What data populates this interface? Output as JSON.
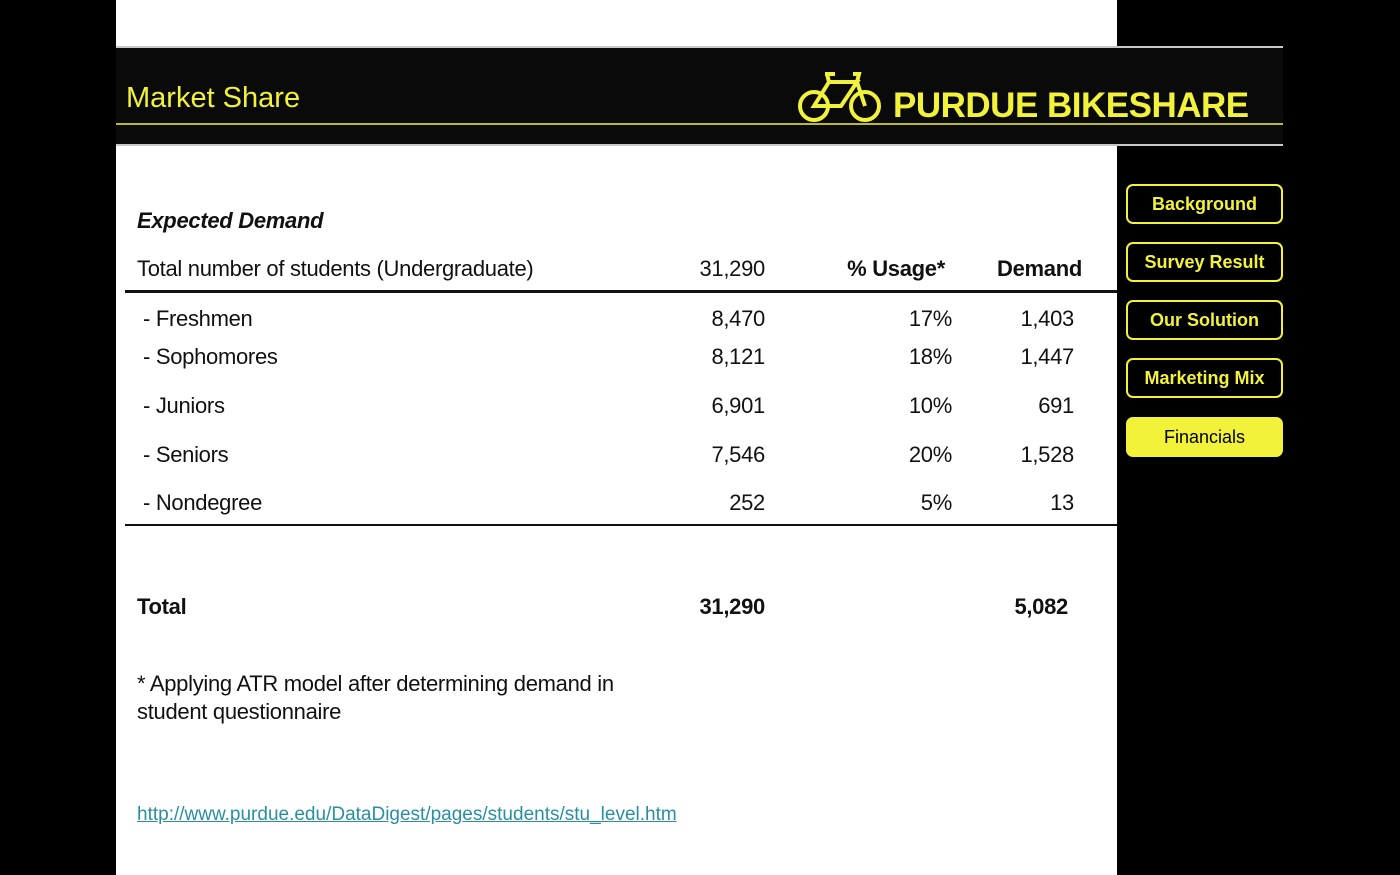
{
  "header": {
    "title": "Market Share",
    "logo": "PURDUE BIKESHARE"
  },
  "nav": [
    "Background",
    "Survey Result",
    "Our Solution",
    "Marketing Mix",
    "Financials"
  ],
  "table": {
    "caption": "Expected Demand",
    "header": [
      "Total number of students (Undergraduate)",
      "31,290",
      "% Usage*",
      "Demand"
    ],
    "rows": [
      [
        "- Freshmen",
        "8,470",
        "17%",
        "1,403"
      ],
      [
        "- Sophomores",
        "8,121",
        "18%",
        "1,447"
      ],
      [
        "- Juniors",
        "6,901",
        "10%",
        "691"
      ],
      [
        "- Seniors",
        "7,546",
        "20%",
        "1,528"
      ],
      [
        "- Nondegree",
        "252",
        "5%",
        "13"
      ]
    ],
    "total": [
      "Total",
      "31,290",
      "5,082"
    ]
  },
  "footnote": [
    "* Applying ATR model after determining demand in",
    "student questionnaire"
  ],
  "link": "http://www.purdue.edu/DataDigest/pages/students/stu_level.htm"
}
